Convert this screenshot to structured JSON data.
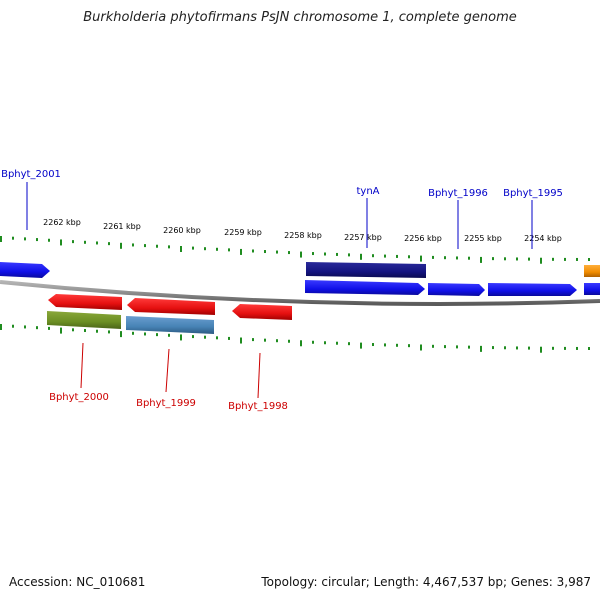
{
  "title": "Burkholderia phytofirmans PsJN chromosome 1, complete genome",
  "footer": {
    "accession": "Accession: NC_010681",
    "topology": "Topology: circular; Length: 4,467,537 bp; Genes: 3,987"
  },
  "scale_labels": [
    "2262 kbp",
    "2261 kbp",
    "2260 kbp",
    "2259 kbp",
    "2258 kbp",
    "2257 kbp",
    "2256 kbp",
    "2255 kbp",
    "2254 kbp"
  ],
  "genes": [
    {
      "name": "Bphyt_2001",
      "strand": "forward",
      "color": "#1010e8",
      "labeled": true
    },
    {
      "name": "tynA",
      "strand": "forward",
      "color": "#141480",
      "labeled": true
    },
    {
      "name": "Bphyt_1996",
      "strand": "forward",
      "color": "#1010e8",
      "labeled": true
    },
    {
      "name": "Bphyt_1995",
      "strand": "forward",
      "color": "#1010e8",
      "labeled": true
    },
    {
      "name": "Bphyt_2000",
      "strand": "reverse",
      "color": "#e51010",
      "labeled": true
    },
    {
      "name": "Bphyt_1999",
      "strand": "reverse",
      "color": "#e51010",
      "labeled": true
    },
    {
      "name": "Bphyt_1998",
      "strand": "reverse",
      "color": "#e51010",
      "labeled": true
    }
  ],
  "colors": {
    "forward_gene": "#1010e8",
    "forward_gene_dark": "#141480",
    "forward_other": "#f08c00",
    "reverse_gene": "#e51010",
    "reverse_rna_green": "#6b8e23",
    "reverse_rna_blue": "#4682b4",
    "backbone": "#8c8c8c",
    "ticks": "#1f8c1f",
    "forward_label": "#0000c8",
    "reverse_label": "#cc0000"
  }
}
